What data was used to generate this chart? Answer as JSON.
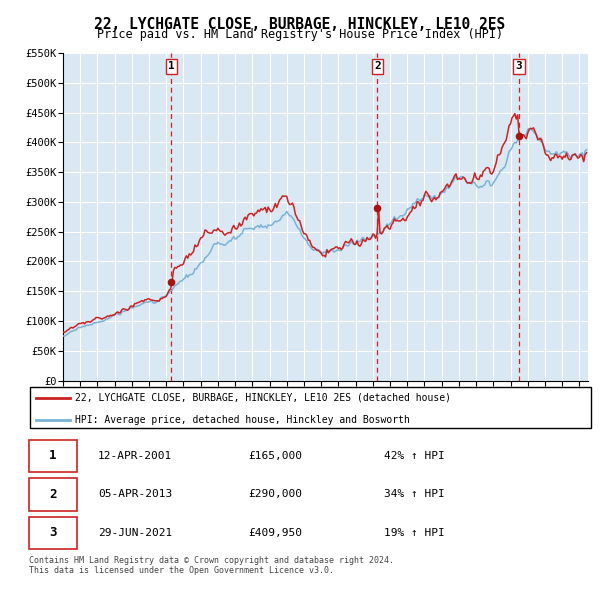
{
  "title": "22, LYCHGATE CLOSE, BURBAGE, HINCKLEY, LE10 2ES",
  "subtitle": "Price paid vs. HM Land Registry's House Price Index (HPI)",
  "ylim": [
    0,
    550000
  ],
  "yticks": [
    0,
    50000,
    100000,
    150000,
    200000,
    250000,
    300000,
    350000,
    400000,
    450000,
    500000,
    550000
  ],
  "ytick_labels": [
    "£0",
    "£50K",
    "£100K",
    "£150K",
    "£200K",
    "£250K",
    "£300K",
    "£350K",
    "£400K",
    "£450K",
    "£500K",
    "£550K"
  ],
  "xlim_start": 1995.0,
  "xlim_end": 2025.5,
  "hpi_color": "#7ab3d4",
  "price_color": "#cc2222",
  "sale_dot_color": "#aa1111",
  "plot_bg_color": "#dae8f4",
  "grid_color": "#ffffff",
  "vline_color": "#cc2222",
  "sales": [
    {
      "label": "1",
      "date_str": "12-APR-2001",
      "year": 2001.28,
      "price": 165000,
      "pct": "42%",
      "direction": "↑"
    },
    {
      "label": "2",
      "date_str": "05-APR-2013",
      "year": 2013.27,
      "price": 290000,
      "pct": "34%",
      "direction": "↑"
    },
    {
      "label": "3",
      "date_str": "29-JUN-2021",
      "year": 2021.49,
      "price": 409950,
      "pct": "19%",
      "direction": "↑"
    }
  ],
  "legend_line1": "22, LYCHGATE CLOSE, BURBAGE, HINCKLEY, LE10 2ES (detached house)",
  "legend_line2": "HPI: Average price, detached house, Hinckley and Bosworth",
  "table_rows": [
    [
      "1",
      "12-APR-2001",
      "£165,000",
      "42% ↑ HPI"
    ],
    [
      "2",
      "05-APR-2013",
      "£290,000",
      "34% ↑ HPI"
    ],
    [
      "3",
      "29-JUN-2021",
      "£409,950",
      "19% ↑ HPI"
    ]
  ],
  "footnote1": "Contains HM Land Registry data © Crown copyright and database right 2024.",
  "footnote2": "This data is licensed under the Open Government Licence v3.0."
}
